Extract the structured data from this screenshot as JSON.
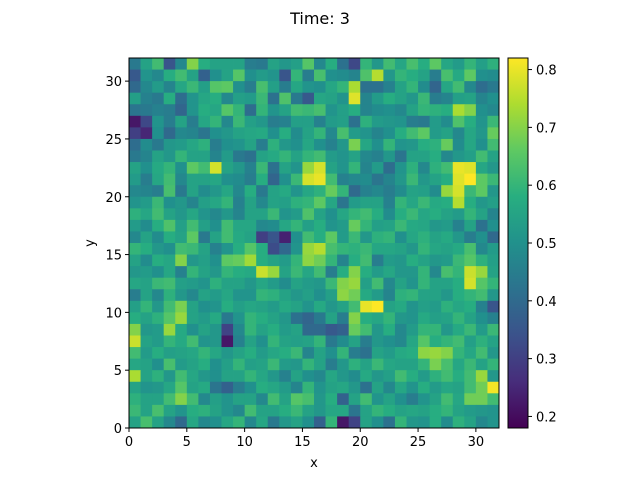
{
  "chart_data": {
    "type": "heatmap",
    "title": "Time: 3",
    "xlabel": "x",
    "ylabel": "y",
    "xlim": [
      0,
      32
    ],
    "ylim": [
      0,
      32
    ],
    "xticks": [
      "0",
      "5",
      "10",
      "15",
      "20",
      "25",
      "30"
    ],
    "yticks": [
      "0",
      "5",
      "10",
      "15",
      "20",
      "25",
      "30"
    ],
    "grid": false,
    "colormap": "viridis",
    "colorbar": {
      "range": [
        0.18,
        0.82
      ],
      "ticks": [
        "0.2",
        "0.3",
        "0.4",
        "0.5",
        "0.6",
        "0.7",
        "0.8"
      ]
    },
    "cells": [
      [
        0.44,
        0.55,
        0.62,
        0.35,
        0.48,
        0.7,
        0.58,
        0.55,
        0.55,
        0.55,
        0.45,
        0.44,
        0.55,
        0.52,
        0.54,
        0.65,
        0.48,
        0.58,
        0.42,
        0.32,
        0.6,
        0.52,
        0.62,
        0.56,
        0.63,
        0.58,
        0.66,
        0.56,
        0.53,
        0.6,
        0.54,
        0.59
      ],
      [
        0.36,
        0.51,
        0.48,
        0.58,
        0.62,
        0.55,
        0.38,
        0.5,
        0.55,
        0.65,
        0.5,
        0.53,
        0.51,
        0.35,
        0.6,
        0.45,
        0.63,
        0.5,
        0.49,
        0.47,
        0.64,
        0.75,
        0.52,
        0.6,
        0.58,
        0.55,
        0.45,
        0.63,
        0.57,
        0.66,
        0.5,
        0.49
      ],
      [
        0.4,
        0.48,
        0.53,
        0.47,
        0.56,
        0.61,
        0.54,
        0.65,
        0.66,
        0.5,
        0.45,
        0.63,
        0.54,
        0.45,
        0.56,
        0.51,
        0.5,
        0.56,
        0.6,
        0.74,
        0.42,
        0.42,
        0.46,
        0.55,
        0.6,
        0.49,
        0.39,
        0.56,
        0.62,
        0.48,
        0.41,
        0.44
      ],
      [
        0.54,
        0.46,
        0.44,
        0.58,
        0.41,
        0.51,
        0.56,
        0.58,
        0.48,
        0.54,
        0.53,
        0.61,
        0.42,
        0.64,
        0.44,
        0.36,
        0.56,
        0.55,
        0.51,
        0.79,
        0.47,
        0.53,
        0.58,
        0.55,
        0.52,
        0.61,
        0.45,
        0.47,
        0.54,
        0.55,
        0.47,
        0.5
      ],
      [
        0.43,
        0.44,
        0.46,
        0.45,
        0.39,
        0.51,
        0.58,
        0.56,
        0.65,
        0.6,
        0.41,
        0.6,
        0.51,
        0.55,
        0.62,
        0.61,
        0.63,
        0.51,
        0.54,
        0.58,
        0.47,
        0.49,
        0.5,
        0.48,
        0.55,
        0.6,
        0.59,
        0.58,
        0.74,
        0.7,
        0.5,
        0.48
      ],
      [
        0.22,
        0.32,
        0.51,
        0.45,
        0.55,
        0.45,
        0.56,
        0.6,
        0.48,
        0.61,
        0.54,
        0.52,
        0.45,
        0.46,
        0.54,
        0.54,
        0.46,
        0.53,
        0.54,
        0.42,
        0.59,
        0.53,
        0.52,
        0.51,
        0.45,
        0.44,
        0.53,
        0.49,
        0.64,
        0.58,
        0.51,
        0.61
      ],
      [
        0.3,
        0.25,
        0.5,
        0.4,
        0.48,
        0.47,
        0.43,
        0.5,
        0.52,
        0.55,
        0.56,
        0.57,
        0.5,
        0.58,
        0.49,
        0.55,
        0.6,
        0.48,
        0.63,
        0.53,
        0.51,
        0.47,
        0.5,
        0.58,
        0.62,
        0.66,
        0.53,
        0.55,
        0.48,
        0.56,
        0.52,
        0.67
      ],
      [
        0.41,
        0.49,
        0.44,
        0.52,
        0.53,
        0.56,
        0.59,
        0.45,
        0.5,
        0.51,
        0.55,
        0.45,
        0.59,
        0.52,
        0.5,
        0.56,
        0.5,
        0.46,
        0.52,
        0.69,
        0.56,
        0.5,
        0.6,
        0.51,
        0.52,
        0.58,
        0.59,
        0.67,
        0.49,
        0.56,
        0.5,
        0.62
      ],
      [
        0.44,
        0.47,
        0.55,
        0.52,
        0.6,
        0.55,
        0.55,
        0.47,
        0.53,
        0.44,
        0.42,
        0.55,
        0.57,
        0.6,
        0.55,
        0.6,
        0.62,
        0.53,
        0.51,
        0.55,
        0.48,
        0.46,
        0.52,
        0.43,
        0.55,
        0.55,
        0.58,
        0.48,
        0.52,
        0.54,
        0.62,
        0.55
      ],
      [
        0.55,
        0.5,
        0.57,
        0.6,
        0.5,
        0.66,
        0.62,
        0.78,
        0.55,
        0.52,
        0.46,
        0.61,
        0.42,
        0.55,
        0.51,
        0.72,
        0.78,
        0.55,
        0.51,
        0.6,
        0.47,
        0.53,
        0.41,
        0.51,
        0.59,
        0.48,
        0.59,
        0.62,
        0.8,
        0.79,
        0.56,
        0.52
      ],
      [
        0.53,
        0.45,
        0.56,
        0.62,
        0.48,
        0.55,
        0.55,
        0.56,
        0.5,
        0.49,
        0.45,
        0.58,
        0.39,
        0.5,
        0.61,
        0.78,
        0.8,
        0.62,
        0.46,
        0.48,
        0.49,
        0.43,
        0.47,
        0.52,
        0.61,
        0.52,
        0.55,
        0.58,
        0.79,
        0.82,
        0.66,
        0.61
      ],
      [
        0.48,
        0.47,
        0.45,
        0.63,
        0.44,
        0.55,
        0.49,
        0.52,
        0.56,
        0.48,
        0.58,
        0.44,
        0.55,
        0.57,
        0.51,
        0.56,
        0.59,
        0.67,
        0.6,
        0.4,
        0.46,
        0.48,
        0.45,
        0.49,
        0.55,
        0.54,
        0.49,
        0.72,
        0.78,
        0.61,
        0.66,
        0.52
      ],
      [
        0.51,
        0.53,
        0.61,
        0.5,
        0.52,
        0.47,
        0.54,
        0.56,
        0.6,
        0.46,
        0.55,
        0.48,
        0.55,
        0.54,
        0.59,
        0.6,
        0.66,
        0.56,
        0.43,
        0.53,
        0.55,
        0.55,
        0.46,
        0.6,
        0.56,
        0.61,
        0.57,
        0.58,
        0.75,
        0.58,
        0.52,
        0.54
      ],
      [
        0.59,
        0.56,
        0.62,
        0.55,
        0.52,
        0.56,
        0.51,
        0.48,
        0.52,
        0.47,
        0.55,
        0.55,
        0.61,
        0.51,
        0.53,
        0.64,
        0.55,
        0.5,
        0.56,
        0.6,
        0.62,
        0.58,
        0.49,
        0.58,
        0.61,
        0.56,
        0.58,
        0.55,
        0.53,
        0.6,
        0.55,
        0.47
      ],
      [
        0.53,
        0.49,
        0.58,
        0.64,
        0.54,
        0.62,
        0.54,
        0.5,
        0.62,
        0.56,
        0.56,
        0.48,
        0.49,
        0.56,
        0.6,
        0.54,
        0.58,
        0.51,
        0.53,
        0.67,
        0.6,
        0.54,
        0.55,
        0.61,
        0.57,
        0.56,
        0.52,
        0.53,
        0.46,
        0.55,
        0.42,
        0.5
      ],
      [
        0.48,
        0.55,
        0.49,
        0.58,
        0.55,
        0.66,
        0.44,
        0.55,
        0.62,
        0.57,
        0.55,
        0.3,
        0.35,
        0.24,
        0.5,
        0.62,
        0.58,
        0.66,
        0.53,
        0.61,
        0.52,
        0.59,
        0.6,
        0.5,
        0.56,
        0.59,
        0.55,
        0.57,
        0.52,
        0.45,
        0.5,
        0.4
      ],
      [
        0.6,
        0.58,
        0.52,
        0.5,
        0.62,
        0.61,
        0.55,
        0.46,
        0.51,
        0.58,
        0.65,
        0.58,
        0.33,
        0.4,
        0.51,
        0.72,
        0.75,
        0.63,
        0.6,
        0.59,
        0.61,
        0.56,
        0.56,
        0.55,
        0.52,
        0.6,
        0.56,
        0.55,
        0.57,
        0.63,
        0.48,
        0.53
      ],
      [
        0.55,
        0.49,
        0.58,
        0.56,
        0.7,
        0.52,
        0.54,
        0.5,
        0.66,
        0.67,
        0.73,
        0.58,
        0.55,
        0.53,
        0.6,
        0.71,
        0.68,
        0.6,
        0.47,
        0.58,
        0.62,
        0.45,
        0.53,
        0.52,
        0.58,
        0.55,
        0.52,
        0.53,
        0.61,
        0.65,
        0.59,
        0.54
      ],
      [
        0.52,
        0.53,
        0.5,
        0.56,
        0.46,
        0.6,
        0.55,
        0.52,
        0.6,
        0.58,
        0.57,
        0.77,
        0.72,
        0.55,
        0.61,
        0.56,
        0.62,
        0.45,
        0.58,
        0.7,
        0.58,
        0.53,
        0.56,
        0.52,
        0.52,
        0.6,
        0.48,
        0.63,
        0.6,
        0.77,
        0.72,
        0.55
      ],
      [
        0.56,
        0.55,
        0.61,
        0.62,
        0.54,
        0.53,
        0.51,
        0.59,
        0.55,
        0.55,
        0.52,
        0.56,
        0.53,
        0.49,
        0.55,
        0.53,
        0.52,
        0.61,
        0.7,
        0.72,
        0.54,
        0.62,
        0.48,
        0.55,
        0.51,
        0.6,
        0.55,
        0.55,
        0.58,
        0.78,
        0.65,
        0.6
      ],
      [
        0.45,
        0.55,
        0.48,
        0.59,
        0.52,
        0.48,
        0.55,
        0.53,
        0.56,
        0.51,
        0.51,
        0.6,
        0.59,
        0.55,
        0.52,
        0.54,
        0.5,
        0.54,
        0.71,
        0.68,
        0.57,
        0.53,
        0.47,
        0.59,
        0.6,
        0.55,
        0.55,
        0.52,
        0.58,
        0.6,
        0.62,
        0.52
      ],
      [
        0.54,
        0.6,
        0.52,
        0.62,
        0.69,
        0.55,
        0.5,
        0.51,
        0.58,
        0.54,
        0.56,
        0.55,
        0.53,
        0.57,
        0.55,
        0.51,
        0.57,
        0.52,
        0.55,
        0.62,
        0.8,
        0.82,
        0.55,
        0.57,
        0.51,
        0.54,
        0.53,
        0.59,
        0.56,
        0.58,
        0.46,
        0.35
      ],
      [
        0.58,
        0.55,
        0.59,
        0.65,
        0.72,
        0.55,
        0.53,
        0.57,
        0.44,
        0.51,
        0.6,
        0.58,
        0.55,
        0.52,
        0.42,
        0.39,
        0.44,
        0.55,
        0.45,
        0.7,
        0.58,
        0.56,
        0.6,
        0.52,
        0.51,
        0.57,
        0.54,
        0.55,
        0.6,
        0.55,
        0.5,
        0.46
      ],
      [
        0.7,
        0.52,
        0.53,
        0.72,
        0.57,
        0.5,
        0.55,
        0.52,
        0.31,
        0.48,
        0.6,
        0.55,
        0.58,
        0.53,
        0.55,
        0.4,
        0.4,
        0.36,
        0.38,
        0.67,
        0.62,
        0.52,
        0.58,
        0.48,
        0.53,
        0.6,
        0.6,
        0.52,
        0.57,
        0.61,
        0.53,
        0.61
      ],
      [
        0.77,
        0.55,
        0.53,
        0.6,
        0.57,
        0.62,
        0.51,
        0.52,
        0.22,
        0.46,
        0.55,
        0.5,
        0.6,
        0.55,
        0.54,
        0.55,
        0.6,
        0.44,
        0.49,
        0.55,
        0.45,
        0.52,
        0.5,
        0.48,
        0.56,
        0.65,
        0.58,
        0.6,
        0.62,
        0.54,
        0.59,
        0.55
      ],
      [
        0.62,
        0.53,
        0.58,
        0.54,
        0.55,
        0.56,
        0.6,
        0.56,
        0.52,
        0.55,
        0.58,
        0.53,
        0.56,
        0.58,
        0.61,
        0.47,
        0.55,
        0.5,
        0.6,
        0.45,
        0.42,
        0.55,
        0.53,
        0.57,
        0.58,
        0.71,
        0.72,
        0.7,
        0.6,
        0.56,
        0.62,
        0.52
      ],
      [
        0.56,
        0.55,
        0.5,
        0.63,
        0.53,
        0.55,
        0.58,
        0.5,
        0.54,
        0.6,
        0.54,
        0.55,
        0.61,
        0.53,
        0.52,
        0.6,
        0.55,
        0.45,
        0.52,
        0.59,
        0.55,
        0.61,
        0.56,
        0.55,
        0.55,
        0.6,
        0.69,
        0.63,
        0.56,
        0.61,
        0.55,
        0.6
      ],
      [
        0.74,
        0.55,
        0.59,
        0.52,
        0.62,
        0.56,
        0.52,
        0.5,
        0.55,
        0.55,
        0.6,
        0.56,
        0.52,
        0.46,
        0.55,
        0.5,
        0.48,
        0.56,
        0.52,
        0.49,
        0.57,
        0.52,
        0.54,
        0.62,
        0.58,
        0.53,
        0.59,
        0.62,
        0.58,
        0.62,
        0.72,
        0.52
      ],
      [
        0.55,
        0.51,
        0.52,
        0.56,
        0.65,
        0.55,
        0.57,
        0.43,
        0.38,
        0.45,
        0.5,
        0.58,
        0.56,
        0.53,
        0.47,
        0.6,
        0.51,
        0.55,
        0.56,
        0.52,
        0.42,
        0.55,
        0.48,
        0.56,
        0.51,
        0.58,
        0.53,
        0.56,
        0.55,
        0.62,
        0.68,
        0.81
      ],
      [
        0.59,
        0.55,
        0.55,
        0.62,
        0.7,
        0.62,
        0.48,
        0.54,
        0.51,
        0.55,
        0.55,
        0.48,
        0.62,
        0.55,
        0.65,
        0.63,
        0.52,
        0.58,
        0.38,
        0.55,
        0.62,
        0.51,
        0.55,
        0.5,
        0.45,
        0.51,
        0.55,
        0.62,
        0.56,
        0.68,
        0.68,
        0.62
      ],
      [
        0.61,
        0.55,
        0.63,
        0.55,
        0.51,
        0.58,
        0.59,
        0.55,
        0.51,
        0.48,
        0.62,
        0.55,
        0.55,
        0.58,
        0.61,
        0.55,
        0.52,
        0.56,
        0.56,
        0.43,
        0.55,
        0.6,
        0.58,
        0.55,
        0.56,
        0.55,
        0.58,
        0.6,
        0.55,
        0.53,
        0.52,
        0.51
      ],
      [
        0.55,
        0.63,
        0.55,
        0.48,
        0.4,
        0.56,
        0.48,
        0.5,
        0.56,
        0.6,
        0.48,
        0.56,
        0.44,
        0.52,
        0.55,
        0.5,
        0.38,
        0.6,
        0.22,
        0.31,
        0.55,
        0.5,
        0.42,
        0.6,
        0.52,
        0.51,
        0.58,
        0.49,
        0.59,
        0.55,
        0.48,
        0.51
      ]
    ]
  }
}
